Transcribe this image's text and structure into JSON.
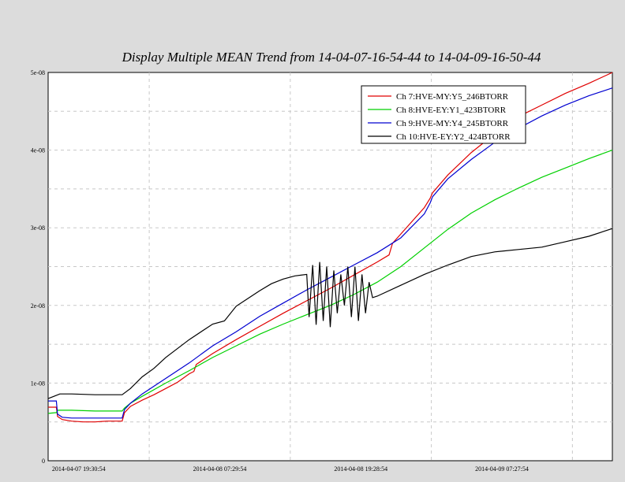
{
  "chart_data": {
    "type": "line",
    "title": "Display Multiple MEAN Trend from 14-04-07-16-54-44 to 14-04-09-16-50-44",
    "xlabel": "",
    "ylabel": "",
    "x_range_hours": [
      0,
      48
    ],
    "xticks": [
      {
        "label": "2014-04-07 19:30:54",
        "hour": 2.6
      },
      {
        "label": "2014-04-08 07:29:54",
        "hour": 14.6
      },
      {
        "label": "2014-04-08 19:28:54",
        "hour": 26.6
      },
      {
        "label": "2014-04-09 07:27:54",
        "hour": 38.6
      }
    ],
    "ylim": [
      0,
      5e-08
    ],
    "yticks": [
      {
        "label": "0",
        "value": 0
      },
      {
        "label": "1e-08",
        "value": 1e-08
      },
      {
        "label": "2e-08",
        "value": 2e-08
      },
      {
        "label": "3e-08",
        "value": 3e-08
      },
      {
        "label": "4e-08",
        "value": 4e-08
      },
      {
        "label": "5e-08",
        "value": 5e-08
      }
    ],
    "grid": true,
    "legend_position": "top-right",
    "series": [
      {
        "name": "Ch 7:HVE-MY:Y5_246BTORR",
        "color": "#e00000",
        "x": [
          0,
          0.7,
          0.8,
          1.2,
          2.0,
          3.0,
          4.0,
          5.0,
          6.3,
          6.5,
          7.0,
          8.0,
          9.0,
          10.0,
          11.0,
          12.0,
          12.4,
          12.6,
          14.0,
          16.0,
          18.0,
          20.0,
          22.0,
          24.0,
          26.0,
          28.0,
          29.0,
          29.3,
          30.0,
          32.0,
          32.5,
          32.7,
          34.0,
          36.0,
          38.0,
          40.0,
          42.0,
          44.0,
          46.0,
          48.0
        ],
        "y": [
          6.9e-09,
          6.9e-09,
          5.7e-09,
          5.3e-09,
          5.1e-09,
          5e-09,
          5e-09,
          5.1e-09,
          5.1e-09,
          6.2e-09,
          7e-09,
          7.8e-09,
          8.5e-09,
          9.3e-09,
          1.01e-08,
          1.12e-08,
          1.15e-08,
          1.24e-08,
          1.38e-08,
          1.56e-08,
          1.73e-08,
          1.9e-08,
          2.06e-08,
          2.22e-08,
          2.39e-08,
          2.56e-08,
          2.65e-08,
          2.8e-08,
          2.92e-08,
          3.26e-08,
          3.38e-08,
          3.45e-08,
          3.68e-08,
          3.97e-08,
          4.21e-08,
          4.43e-08,
          4.58e-08,
          4.73e-08,
          4.86e-08,
          5e-08
        ]
      },
      {
        "name": "Ch 8:HVE-EY:Y1_423BTORR",
        "color": "#00d000",
        "x": [
          0,
          0.7,
          0.8,
          1.2,
          2.0,
          4.0,
          6.3,
          6.5,
          7.0,
          8.0,
          10.0,
          12.0,
          14.0,
          16.0,
          18.0,
          20.0,
          22.0,
          24.0,
          26.0,
          28.0,
          30.0,
          32.0,
          34.0,
          36.0,
          38.0,
          40.0,
          42.0,
          44.0,
          46.0,
          48.0
        ],
        "y": [
          6.1e-09,
          6.2e-09,
          6.5e-09,
          6.5e-09,
          6.5e-09,
          6.4e-09,
          6.4e-09,
          6.8e-09,
          7.4e-09,
          8.3e-09,
          1e-08,
          1.16e-08,
          1.33e-08,
          1.48e-08,
          1.63e-08,
          1.76e-08,
          1.88e-08,
          2e-08,
          2.14e-08,
          2.3e-08,
          2.5e-08,
          2.74e-08,
          2.98e-08,
          3.19e-08,
          3.36e-08,
          3.51e-08,
          3.65e-08,
          3.77e-08,
          3.89e-08,
          4e-08
        ]
      },
      {
        "name": "Ch 9:HVE-MY:Y4_245BTORR",
        "color": "#0000d0",
        "x": [
          0,
          0.7,
          0.8,
          1.2,
          2.0,
          4.0,
          6.3,
          6.5,
          7.0,
          8.0,
          10.0,
          12.0,
          14.0,
          16.0,
          18.0,
          20.0,
          22.0,
          24.0,
          26.0,
          28.0,
          30.0,
          32.0,
          32.5,
          32.7,
          34.0,
          36.0,
          38.0,
          40.0,
          42.0,
          44.0,
          46.0,
          48.0
        ],
        "y": [
          7.7e-09,
          7.7e-09,
          6e-09,
          5.6e-09,
          5.5e-09,
          5.5e-09,
          5.5e-09,
          6.6e-09,
          7.4e-09,
          8.6e-09,
          1.06e-08,
          1.26e-08,
          1.48e-08,
          1.66e-08,
          1.86e-08,
          2.03e-08,
          2.2e-08,
          2.36e-08,
          2.52e-08,
          2.68e-08,
          2.87e-08,
          3.18e-08,
          3.32e-08,
          3.4e-08,
          3.63e-08,
          3.88e-08,
          4.1e-08,
          4.28e-08,
          4.44e-08,
          4.58e-08,
          4.7e-08,
          4.8e-08
        ]
      },
      {
        "name": "Ch 10:HVE-EY:Y2_424BTORR",
        "color": "#000000",
        "x": [
          0,
          0.5,
          1.0,
          2.0,
          4.0,
          6.3,
          7.0,
          8.0,
          9.0,
          10.0,
          12.0,
          14.0,
          15.0,
          16.0,
          18.0,
          19.0,
          20.0,
          21.0,
          22.0,
          22.2,
          22.5,
          22.8,
          23.1,
          23.4,
          23.7,
          24.0,
          24.3,
          24.6,
          24.9,
          25.2,
          25.5,
          25.8,
          26.1,
          26.4,
          26.7,
          27.0,
          27.3,
          27.6,
          28.0,
          30.0,
          32.0,
          34.0,
          36.0,
          38.0,
          40.0,
          42.0,
          44.0,
          46.0,
          48.0
        ],
        "y": [
          8e-09,
          8.3e-09,
          8.6e-09,
          8.6e-09,
          8.5e-09,
          8.5e-09,
          9.3e-09,
          1.08e-08,
          1.19e-08,
          1.33e-08,
          1.56e-08,
          1.76e-08,
          1.8e-08,
          1.99e-08,
          2.19e-08,
          2.28e-08,
          2.34e-08,
          2.38e-08,
          2.4e-08,
          1.85e-08,
          2.52e-08,
          1.75e-08,
          2.56e-08,
          1.8e-08,
          2.5e-08,
          1.72e-08,
          2.45e-08,
          1.9e-08,
          2.4e-08,
          2e-08,
          2.5e-08,
          1.85e-08,
          2.5e-08,
          1.8e-08,
          2.4e-08,
          1.9e-08,
          2.3e-08,
          2.1e-08,
          2.12e-08,
          2.26e-08,
          2.4e-08,
          2.52e-08,
          2.63e-08,
          2.69e-08,
          2.72e-08,
          2.75e-08,
          2.82e-08,
          2.89e-08,
          2.99e-08
        ]
      }
    ]
  }
}
